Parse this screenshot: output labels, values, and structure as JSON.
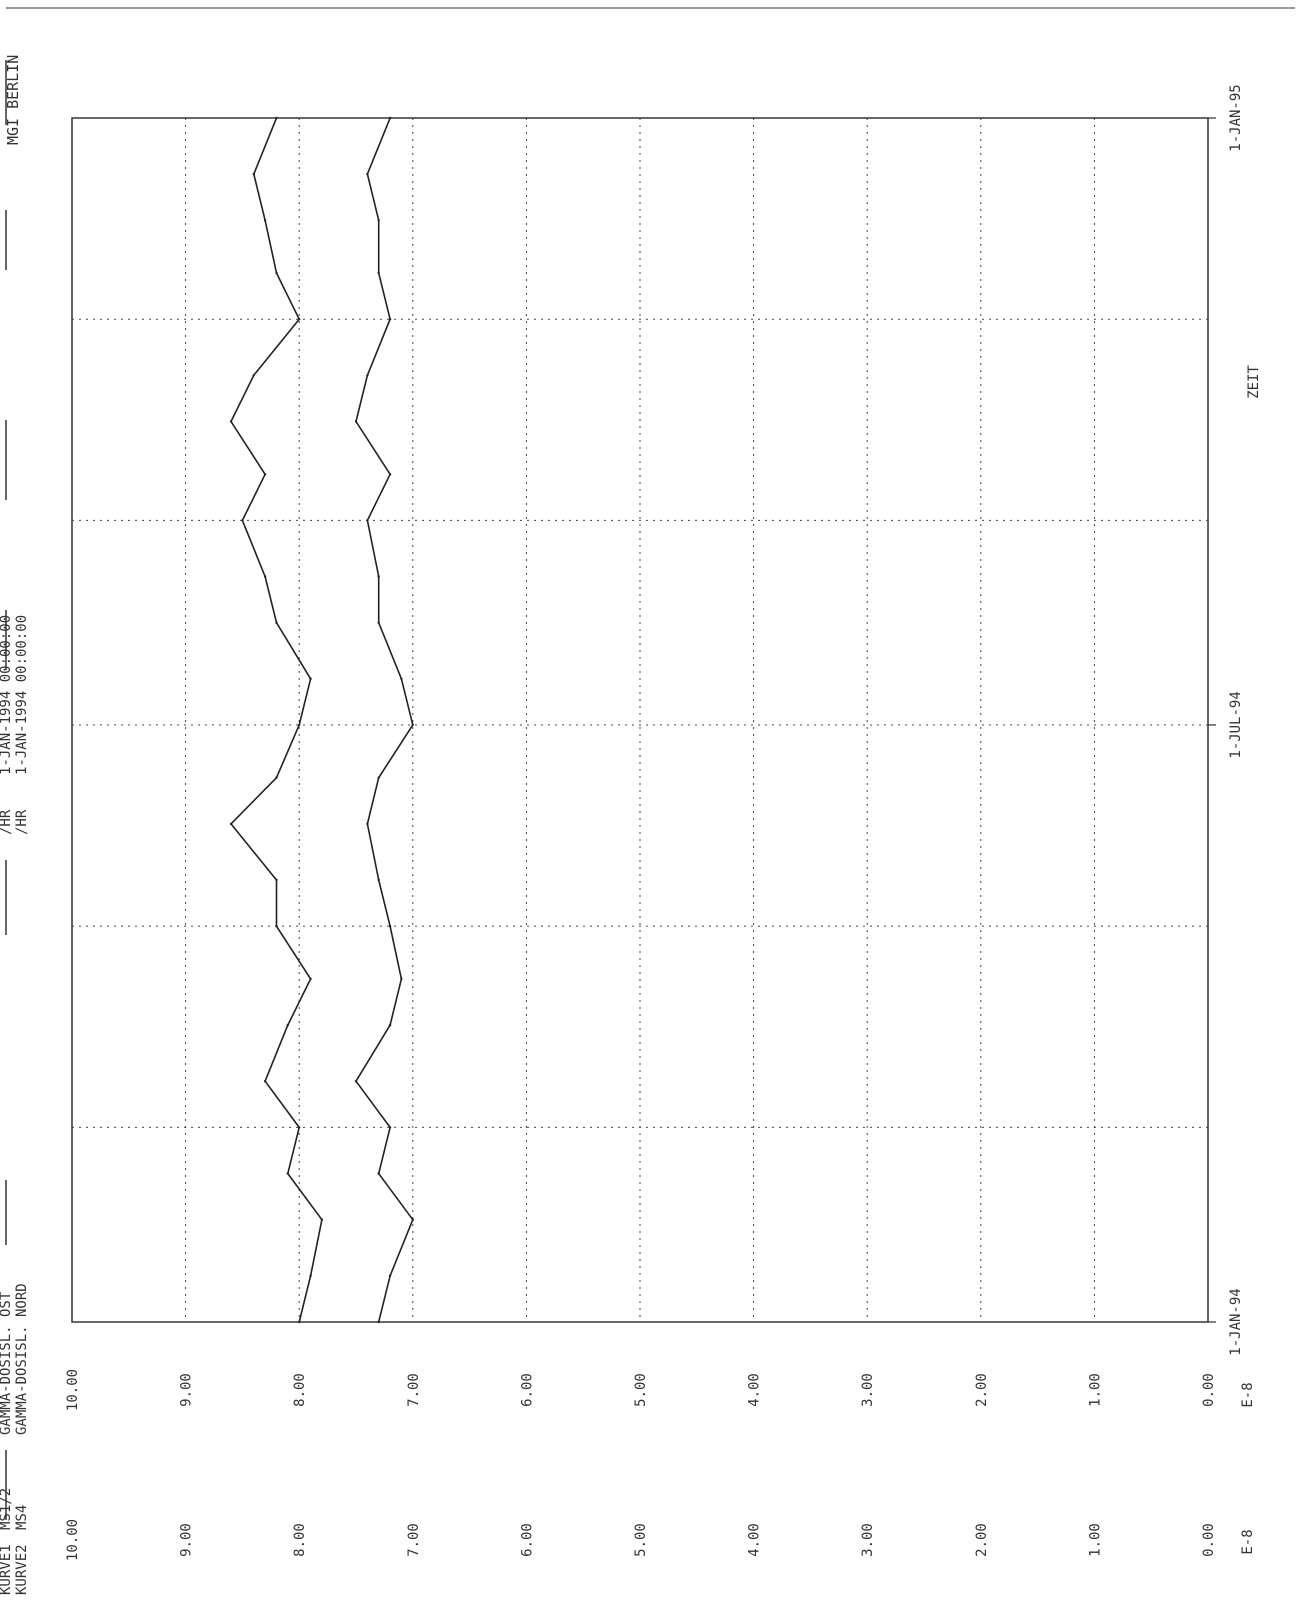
{
  "header": {
    "institute": "MGI BERLIN",
    "curve1_label": "KURVE1",
    "curve1_station": "MS1/2",
    "curve1_name": "GAMMA-DOSISL. OST",
    "curve1_unit": "/HR",
    "curve1_start": "1-JAN-1994 00:00:00",
    "curve2_label": "KURVE2",
    "curve2_station": "MS4",
    "curve2_name": "GAMMA-DOSISL. NORD",
    "curve2_unit": "/HR",
    "curve2_start": "1-JAN-1994 00:00:00"
  },
  "chart_data": {
    "type": "line",
    "title": "",
    "xlabel": "ZEIT",
    "ylabel": "",
    "y_exponent_label": "E-8",
    "ylim": [
      0,
      10
    ],
    "xlim": [
      "1994-01-01",
      "1995-01-01"
    ],
    "x_ticks": [
      {
        "date": "1994-01-01",
        "label": "1-JAN-94"
      },
      {
        "date": "1994-07-01",
        "label": "1-JUL-94"
      },
      {
        "date": "1995-01-01",
        "label": "1-JAN-95"
      }
    ],
    "y_ticks": [
      "10.00",
      "9.00",
      "8.00",
      "7.00",
      "6.00",
      "5.00",
      "4.00",
      "3.00",
      "2.00",
      "1.00",
      "0.00"
    ],
    "grid": true,
    "orientation": "rotated 90 degrees counter-clockwise",
    "series": [
      {
        "name": "KURVE1",
        "x": [
          "1994-01-01",
          "1994-01-15",
          "1994-02-01",
          "1994-02-15",
          "1994-03-01",
          "1994-03-15",
          "1994-04-01",
          "1994-04-15",
          "1994-05-01",
          "1994-05-15",
          "1994-06-01",
          "1994-06-15",
          "1994-07-01",
          "1994-07-15",
          "1994-08-01",
          "1994-08-15",
          "1994-09-01",
          "1994-09-15",
          "1994-10-01",
          "1994-10-15",
          "1994-11-01",
          "1994-11-15",
          "1994-12-01",
          "1994-12-15",
          "1995-01-01"
        ],
        "values": [
          8.0,
          7.9,
          7.8,
          8.1,
          8.0,
          8.3,
          8.1,
          7.9,
          8.2,
          8.2,
          8.6,
          8.2,
          8.0,
          7.9,
          8.2,
          8.3,
          8.5,
          8.3,
          8.6,
          8.4,
          8.0,
          8.2,
          8.3,
          8.4,
          8.2
        ]
      },
      {
        "name": "KURVE2",
        "x": [
          "1994-01-01",
          "1994-01-15",
          "1994-02-01",
          "1994-02-15",
          "1994-03-01",
          "1994-03-15",
          "1994-04-01",
          "1994-04-15",
          "1994-05-01",
          "1994-05-15",
          "1994-06-01",
          "1994-06-15",
          "1994-07-01",
          "1994-07-15",
          "1994-08-01",
          "1994-08-15",
          "1994-09-01",
          "1994-09-15",
          "1994-10-01",
          "1994-10-15",
          "1994-11-01",
          "1994-11-15",
          "1994-12-01",
          "1994-12-15",
          "1995-01-01"
        ],
        "values": [
          7.3,
          7.2,
          7.0,
          7.3,
          7.2,
          7.5,
          7.2,
          7.1,
          7.2,
          7.3,
          7.4,
          7.3,
          7.0,
          7.1,
          7.3,
          7.3,
          7.4,
          7.2,
          7.5,
          7.4,
          7.2,
          7.3,
          7.3,
          7.4,
          7.2
        ]
      }
    ]
  }
}
